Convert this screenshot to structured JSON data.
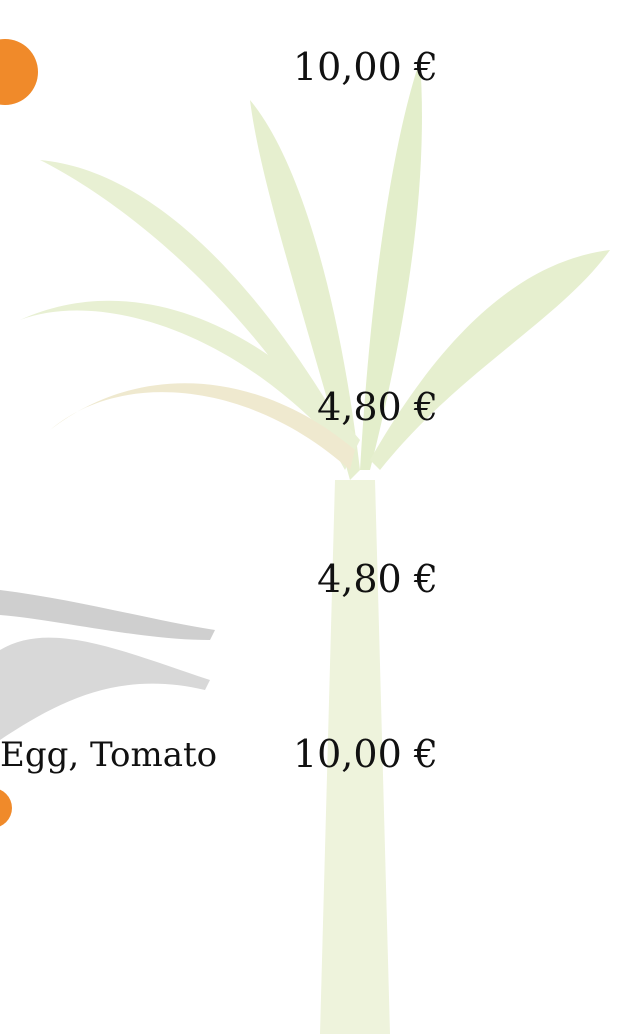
{
  "prices": [
    "10,00 €",
    "4,80 €",
    "4,80 €",
    "10,00 €"
  ],
  "items": [
    "Egg, Tomato"
  ]
}
